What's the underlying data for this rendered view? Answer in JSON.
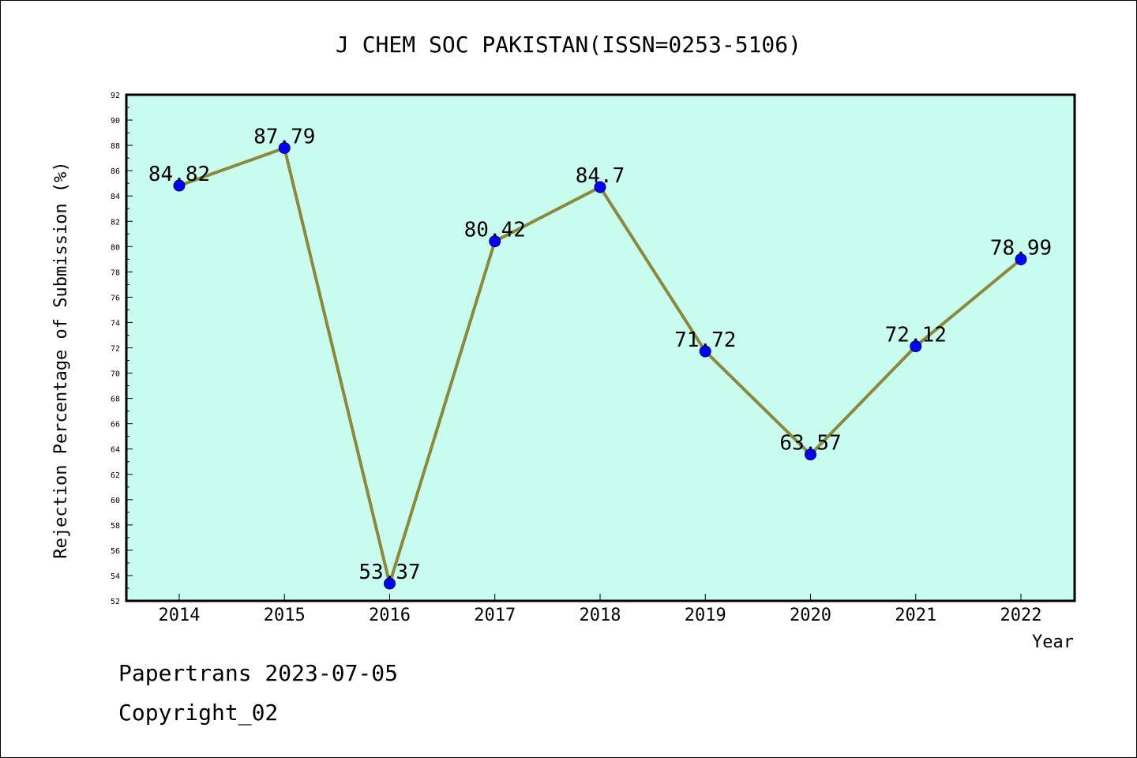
{
  "chart_data": {
    "type": "line",
    "title": "J CHEM SOC PAKISTAN(ISSN=0253-5106)",
    "xlabel": "Year",
    "ylabel": "Rejection Percentage of Submission (%)",
    "categories": [
      "2014",
      "2015",
      "2016",
      "2017",
      "2018",
      "2019",
      "2020",
      "2021",
      "2022"
    ],
    "values": [
      84.82,
      87.79,
      53.37,
      80.42,
      84.7,
      71.72,
      63.57,
      72.12,
      78.99
    ],
    "data_labels": [
      "84.82",
      "87.79",
      "53.37",
      "80.42",
      "84.7",
      "71.72",
      "63.57",
      "72.12",
      "78.99"
    ],
    "ylim": [
      52,
      92
    ],
    "y_ticks": [
      52,
      54,
      56,
      58,
      60,
      62,
      64,
      66,
      68,
      70,
      72,
      74,
      76,
      78,
      80,
      82,
      84,
      86,
      88,
      90,
      92
    ],
    "grid": false,
    "legend": "none",
    "colors": {
      "plot_background": "#c8fcee",
      "line": "#8c8a3a",
      "marker": "#0000ff"
    }
  },
  "footer": {
    "line1": "Papertrans 2023-07-05",
    "line2": "Copyright_02"
  }
}
